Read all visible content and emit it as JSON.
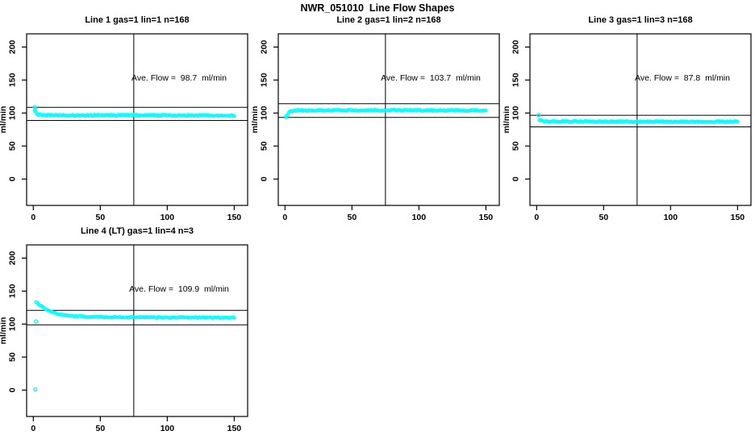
{
  "figure_title": "NWR_051010  Line Flow Shapes",
  "colors": {
    "point_color": "#00ffff",
    "axis_color": "#000000",
    "background": "#ffffff",
    "text_color": "#000000"
  },
  "chart_data": [
    {
      "type": "scatter",
      "title": "Line 1 gas=1 lin=1 n=168",
      "annotation": "Ave. Flow =  98.7  ml/min",
      "avg_flow_ml_min": 98.7,
      "n": 168,
      "xlabel": "",
      "ylabel": "ml/min",
      "xticks": [
        0,
        50,
        100,
        150
      ],
      "yticks": [
        0,
        50,
        100,
        150,
        200
      ],
      "xlim": [
        -5,
        160
      ],
      "ylim": [
        -40,
        220
      ],
      "ref_hlines": [
        108.57,
        88.83
      ],
      "ref_vline": 75,
      "marker": "open-circle",
      "grid": false,
      "legend": false,
      "point_count": 168,
      "noise_amp": 0.9,
      "series_shape": {
        "x": [
          1,
          2,
          3,
          6,
          15,
          75,
          150
        ],
        "y": [
          103.5,
          100,
          98.2,
          97,
          96.5,
          96.6,
          96.2
        ]
      },
      "extra_points": [
        [
          1,
          109
        ],
        [
          1.5,
          106
        ]
      ]
    },
    {
      "type": "scatter",
      "title": "Line 2 gas=1 lin=2 n=168",
      "annotation": "Ave. Flow =  103.7  ml/min",
      "avg_flow_ml_min": 103.7,
      "n": 168,
      "xlabel": "",
      "ylabel": "ml/min",
      "xticks": [
        0,
        50,
        100,
        150
      ],
      "yticks": [
        0,
        50,
        100,
        150,
        200
      ],
      "xlim": [
        -5,
        160
      ],
      "ylim": [
        -40,
        220
      ],
      "ref_hlines": [
        114.07,
        93.33
      ],
      "ref_vline": 75,
      "marker": "open-circle",
      "grid": false,
      "legend": false,
      "point_count": 168,
      "noise_amp": 0.9,
      "series_shape": {
        "x": [
          1,
          2,
          3,
          5,
          10,
          75,
          150
        ],
        "y": [
          93,
          98,
          101,
          103,
          104,
          104.2,
          103.8
        ]
      },
      "extra_points": [
        [
          1,
          95.5
        ]
      ]
    },
    {
      "type": "scatter",
      "title": "Line 3 gas=1 lin=3 n=168",
      "annotation": "Ave. Flow =  87.8  ml/min",
      "avg_flow_ml_min": 87.8,
      "n": 168,
      "xlabel": "",
      "ylabel": "ml/min",
      "xticks": [
        0,
        50,
        100,
        150
      ],
      "yticks": [
        0,
        50,
        100,
        150,
        200
      ],
      "xlim": [
        -5,
        160
      ],
      "ylim": [
        -40,
        220
      ],
      "ref_hlines": [
        96.58,
        79.02
      ],
      "ref_vline": 75,
      "marker": "open-circle",
      "grid": false,
      "legend": false,
      "point_count": 168,
      "noise_amp": 0.8,
      "series_shape": {
        "x": [
          2,
          4,
          10,
          75,
          150
        ],
        "y": [
          89,
          87.8,
          87.2,
          87,
          86.8
        ]
      },
      "extra_points": [
        [
          1.5,
          97
        ]
      ]
    },
    {
      "type": "scatter",
      "title": "Line 4 (LT) gas=1 lin=4 n=3",
      "annotation": "Ave. Flow =  109.9  ml/min",
      "avg_flow_ml_min": 109.9,
      "n": 3,
      "xlabel": "",
      "ylabel": "ml/min",
      "xticks": [
        0,
        50,
        100,
        150
      ],
      "yticks": [
        0,
        50,
        100,
        150,
        200
      ],
      "xlim": [
        -5,
        160
      ],
      "ylim": [
        -40,
        220
      ],
      "ref_hlines": [
        120.89,
        98.91
      ],
      "ref_vline": 75,
      "marker": "open-circle",
      "grid": false,
      "legend": false,
      "point_count": 150,
      "noise_amp": 0.7,
      "series_shape": {
        "x": [
          2,
          4,
          6,
          9,
          13,
          18,
          25,
          35,
          50,
          75,
          150
        ],
        "y": [
          134,
          130,
          127,
          123,
          119,
          115.5,
          113,
          111.5,
          110.7,
          110.2,
          109.8
        ]
      },
      "extra_points": [
        [
          2,
          104
        ],
        [
          1.5,
          1
        ]
      ]
    }
  ]
}
